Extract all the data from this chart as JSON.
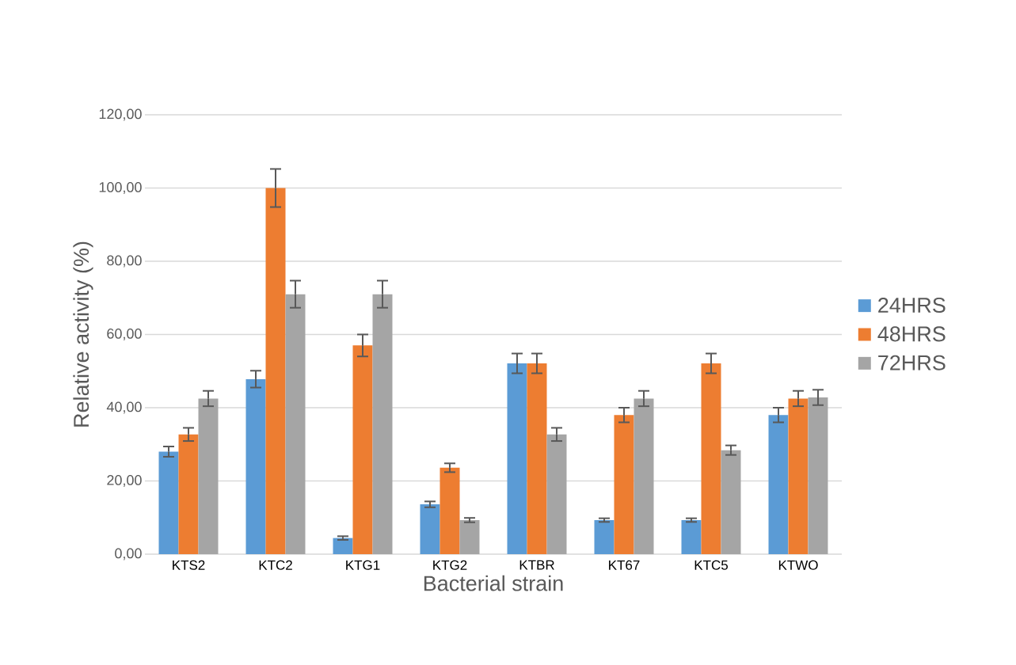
{
  "chart_data": {
    "type": "bar",
    "xlabel": "Bacterial  strain",
    "ylabel": "Relative activity (%)",
    "categories": [
      "KTS2",
      "KTC2",
      "KTG1",
      "KTG2",
      "KTBR",
      "KT67",
      "KTC5",
      "KTWO"
    ],
    "series": [
      {
        "name": "24HRS",
        "color": "#5b9bd5",
        "values": [
          28,
          47.8,
          4.4,
          13.6,
          52.1,
          9.3,
          9.3,
          38
        ],
        "errors": [
          1.4,
          2.3,
          0.5,
          0.8,
          2.7,
          0.5,
          0.5,
          2
        ]
      },
      {
        "name": "48HRS",
        "color": "#ed7d31",
        "values": [
          32.7,
          100,
          57,
          23.6,
          52.1,
          38,
          52.1,
          42.5
        ],
        "errors": [
          1.8,
          5.2,
          3,
          1.2,
          2.7,
          2,
          2.7,
          2.1
        ]
      },
      {
        "name": "72HRS",
        "color": "#a5a5a5",
        "values": [
          42.5,
          71,
          71,
          9.3,
          32.7,
          42.5,
          28.4,
          42.8
        ],
        "errors": [
          2.1,
          3.7,
          3.7,
          0.6,
          1.8,
          2.1,
          1.3,
          2.1
        ]
      }
    ],
    "ylim": [
      0,
      120
    ],
    "yticks": [
      {
        "value": 0,
        "label": "0,00"
      },
      {
        "value": 20,
        "label": "20,00"
      },
      {
        "value": 40,
        "label": "40,00"
      },
      {
        "value": 60,
        "label": "60,00"
      },
      {
        "value": 80,
        "label": "80,00"
      },
      {
        "value": 100,
        "label": "100,00"
      },
      {
        "value": 120,
        "label": "120,00"
      }
    ],
    "grid": "y",
    "legend": "right"
  }
}
